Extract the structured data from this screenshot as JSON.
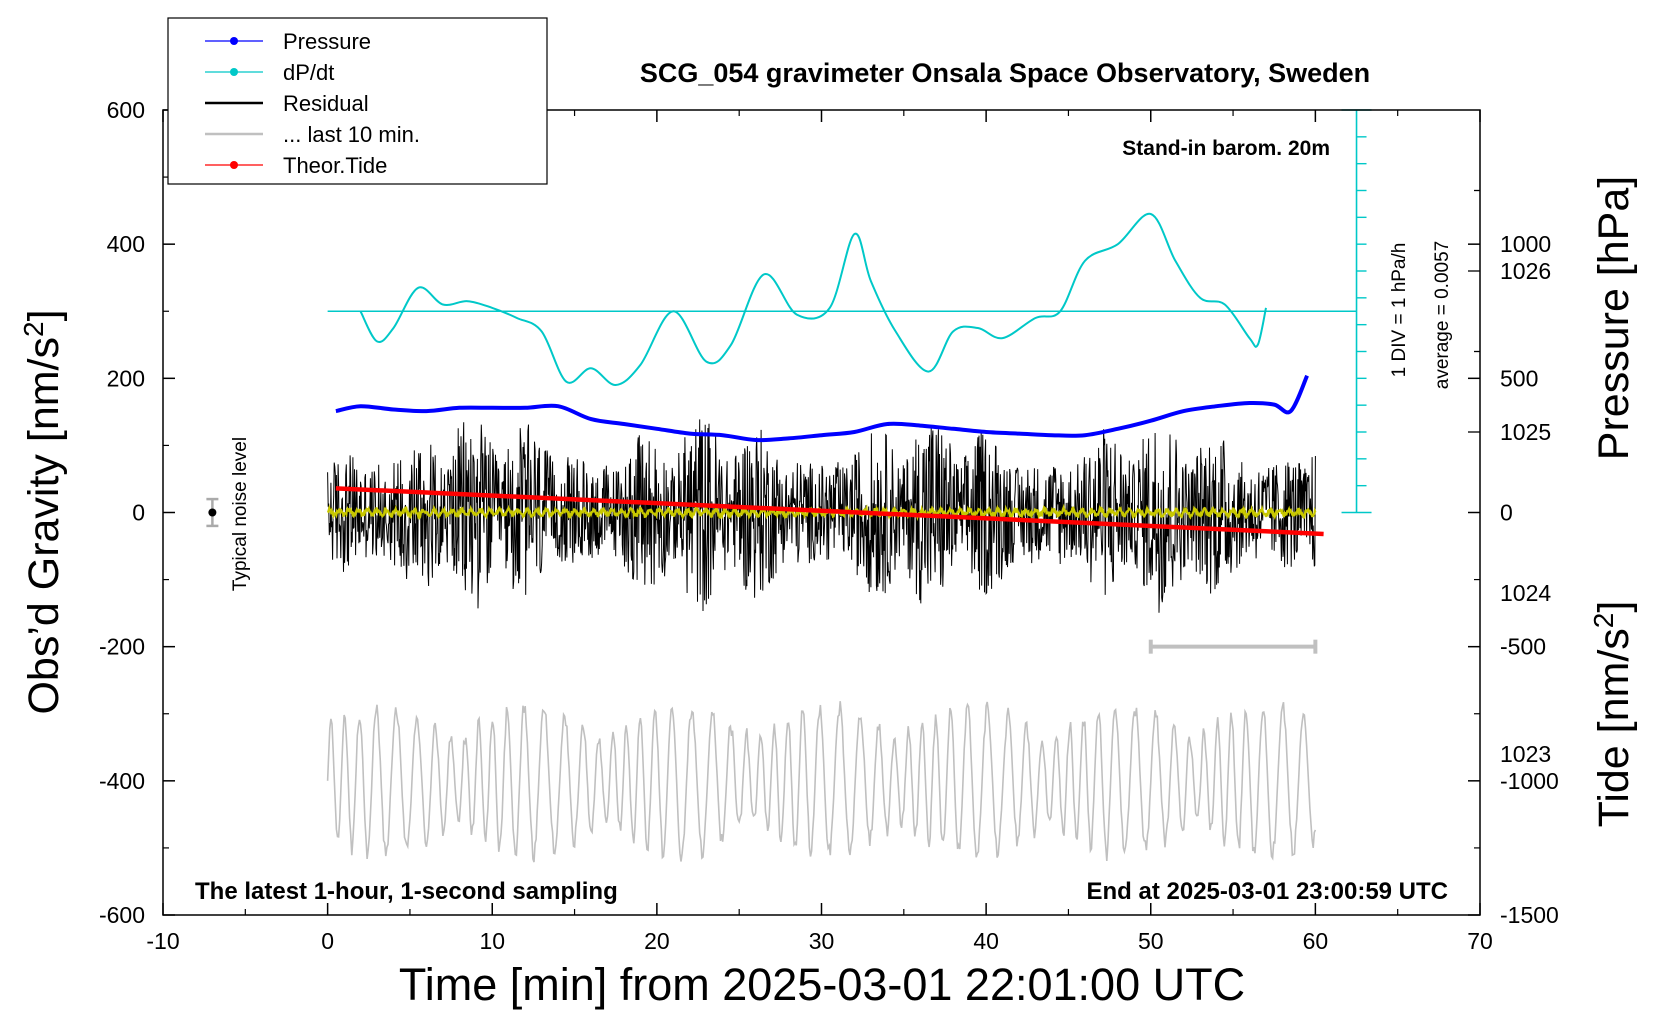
{
  "chart_data": {
    "type": "line",
    "title": "SCG_054 gravimeter Onsala Space Observatory, Sweden",
    "xlabel": "Time [min] from 2025-03-01 22:01:00 UTC",
    "ylabel_left": "Obs’d Gravity [nm/s²]",
    "ylabel_left_text": "Obs’d Gravity [nm/s",
    "ylabel_right_pressure": "Pressure [hPa]",
    "ylabel_right_tide": "Tide [nm/s²]",
    "ylabel_right_tide_text": "Tide [nm/s",
    "superscript": "2",
    "xlim": [
      -10,
      70
    ],
    "ylim_left": [
      -600,
      600
    ],
    "ylim_right_pressure": [
      1022,
      1027
    ],
    "ylim_right_tide": [
      -1500,
      1500
    ],
    "x_ticks": [
      "-10",
      "0",
      "10",
      "20",
      "30",
      "40",
      "50",
      "60",
      "70"
    ],
    "y_ticks_left": [
      "600",
      "400",
      "200",
      "0",
      "-200",
      "-400",
      "-600"
    ],
    "y_ticks_pressure": [
      "1026",
      "1025",
      "1024",
      "1023"
    ],
    "y_ticks_tide": [
      "1000",
      "500",
      "0",
      "-500",
      "-1000",
      "-1500"
    ],
    "legend": [
      {
        "label": "Pressure",
        "color": "#0000ff",
        "marker": true
      },
      {
        "label": "dP/dt",
        "color": "#00c8c8",
        "marker": true
      },
      {
        "label": "Residual",
        "color": "#000000",
        "marker": false
      },
      {
        "label": "... last 10 min.",
        "color": "#c0c0c0",
        "marker": false
      },
      {
        "label": "Theor.Tide",
        "color": "#ff0000",
        "marker": true
      }
    ],
    "annotations": {
      "barometer": "Stand-in barom. 20m",
      "div_scale": "1 DIV = 1 hPa/h",
      "average": "average = 0.0057",
      "noise": "Typical noise level",
      "sampling": "The latest 1-hour, 1-second sampling",
      "end_time": "End at 2025-03-01 23:00:59 UTC"
    },
    "series": [
      {
        "name": "Pressure",
        "axis": "pressure",
        "color": "#0000ff",
        "x": [
          0.5,
          2,
          4,
          6,
          8,
          10,
          12,
          14,
          16,
          18,
          20,
          22,
          24,
          26,
          28,
          30,
          32,
          34,
          36,
          38,
          40,
          42,
          44,
          46,
          48,
          50,
          52,
          54,
          56,
          57.5,
          58.5,
          59.5
        ],
        "values": [
          1025.13,
          1025.16,
          1025.14,
          1025.13,
          1025.15,
          1025.15,
          1025.15,
          1025.16,
          1025.08,
          1025.05,
          1025.02,
          1024.99,
          1024.98,
          1024.95,
          1024.96,
          1024.98,
          1025.0,
          1025.05,
          1025.04,
          1025.02,
          1025.0,
          1024.99,
          1024.98,
          1024.98,
          1025.02,
          1025.07,
          1025.13,
          1025.16,
          1025.18,
          1025.17,
          1025.13,
          1025.35
        ]
      },
      {
        "name": "dP/dt",
        "axis": "left",
        "color": "#00c8c8",
        "x": [
          2,
          3,
          4,
          5.5,
          7,
          8.5,
          10,
          11.5,
          13,
          14.5,
          16,
          17.5,
          19,
          21,
          23,
          24.5,
          26.5,
          28.5,
          30.5,
          32,
          33,
          34.5,
          36.5,
          38,
          39.5,
          41,
          43,
          44.5,
          46,
          48,
          50,
          51.5,
          53,
          54.5,
          56,
          56.5,
          57
        ],
        "values": [
          300,
          255,
          275,
          335,
          310,
          315,
          305,
          290,
          270,
          195,
          215,
          190,
          220,
          300,
          225,
          250,
          355,
          295,
          305,
          415,
          345,
          270,
          210,
          270,
          275,
          260,
          290,
          300,
          375,
          400,
          445,
          375,
          320,
          310,
          260,
          250,
          305
        ]
      },
      {
        "name": "Theor.Tide",
        "axis": "tide",
        "color": "#ff0000",
        "x": [
          0.5,
          60.5
        ],
        "values": [
          90,
          -80
        ]
      }
    ],
    "residual_window": {
      "xmin": 0,
      "xmax": 60,
      "envelope": 150
    },
    "last10_window": {
      "xmin": 0,
      "xmax": 60,
      "center": -400,
      "amplitude": 110
    },
    "dpdt_reference_level": 300,
    "noise_bar": {
      "x": -7,
      "value": 0,
      "error": 20
    },
    "last10_bracket": {
      "x_start": 50,
      "x_end": 60,
      "value": -200
    }
  }
}
